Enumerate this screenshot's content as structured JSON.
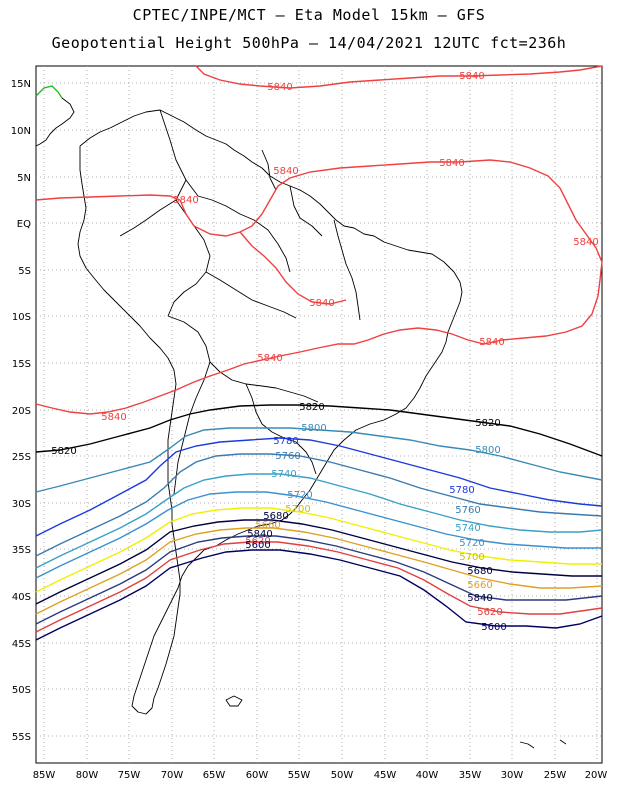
{
  "header": {
    "title_line1": "CPTEC/INPE/MCT –  Eta Model 15km – GFS",
    "title_line2": "Geopotential Height 500hPa – 14/04/2021 12UTC fct=236h"
  },
  "axes": {
    "lat_labels": [
      "15N",
      "10N",
      "5N",
      "EQ",
      "5S",
      "10S",
      "15S",
      "20S",
      "25S",
      "30S",
      "35S",
      "40S",
      "45S",
      "50S",
      "55S"
    ],
    "lon_labels": [
      "85W",
      "80W",
      "75W",
      "70W",
      "65W",
      "60W",
      "55W",
      "50W",
      "45W",
      "40W",
      "35W",
      "30W",
      "25W",
      "20W"
    ],
    "grid": "dotted"
  },
  "colors": {
    "c5840": "#f04040",
    "c5820": "#000000",
    "c5800": "#3a8ab8",
    "c5780": "#1a3ae0",
    "c5760": "#3a7ab0",
    "c5740": "#3aa0c8",
    "c5720": "#3a90d0",
    "c5700": "#f0f000",
    "c5680": "#000040",
    "c5660": "#e0a020",
    "c5620": "#e04040",
    "c5600": "#000060",
    "coast": "#000000",
    "top_left_coast": "#20c020"
  },
  "contour_labels": {
    "l5840": "5840",
    "l5820": "5820",
    "l5800": "5800",
    "l5780": "5780",
    "l5760": "5760",
    "l5740": "5740",
    "l5720": "5720",
    "l5700": "5700",
    "l5680": "5680",
    "l5660": "5660",
    "l5620": "5620",
    "l5600": "5600"
  }
}
